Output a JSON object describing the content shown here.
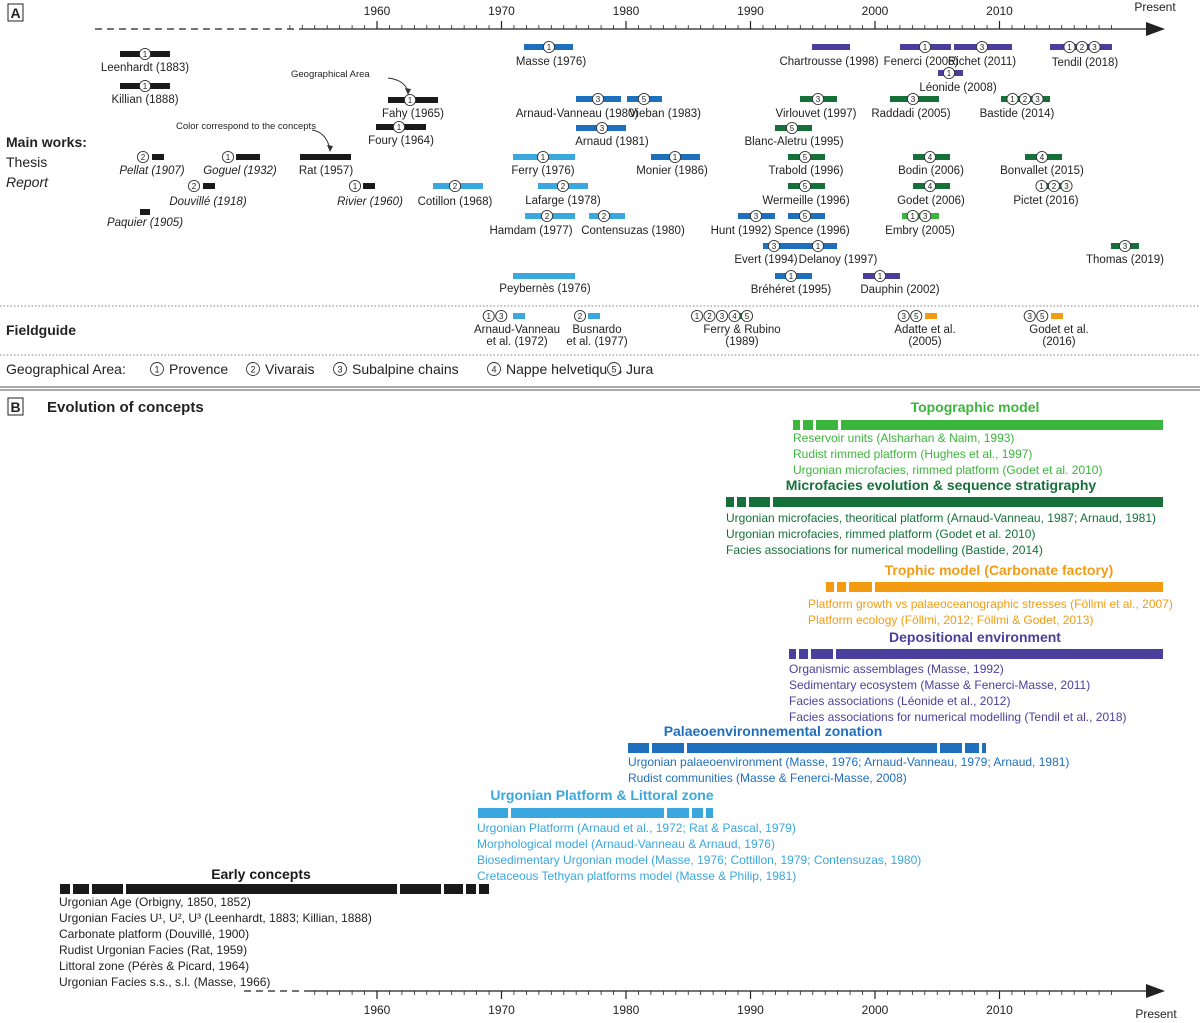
{
  "colors": {
    "black": "#1a1a1a",
    "light_blue": "#3aa7df",
    "mid_blue": "#1f6fbf",
    "purple": "#4b3f9e",
    "dark_green": "#16703a",
    "light_green": "#3cb53c",
    "orange": "#f39c12"
  },
  "panel_a": {
    "label": "A",
    "axis": {
      "ticks": [
        "1960",
        "1970",
        "1980",
        "1990",
        "2000",
        "2010"
      ],
      "tick_years": [
        1960,
        1970,
        1980,
        1990,
        2000,
        2010
      ],
      "end_label": "Present"
    },
    "main_works_label": "Main works:",
    "thesis_label": "Thesis",
    "report_label": "Report",
    "fieldguide_label": "Fieldguide",
    "annotation_area": "Geographical Area",
    "annotation_color": "Color correspond to the concepts",
    "works": [
      {
        "name": "Leenhardt (1883)",
        "italic": false,
        "areas": [
          1
        ]
      },
      {
        "name": "Killian (1888)",
        "italic": false,
        "areas": [
          1
        ]
      },
      {
        "name": "Fahy (1965)",
        "italic": false,
        "areas": [
          1
        ]
      },
      {
        "name": "Foury (1964)",
        "italic": false,
        "areas": [
          1
        ]
      },
      {
        "name": "Rat (1957)",
        "italic": false,
        "areas": []
      },
      {
        "name": "Pellat (1907)",
        "italic": true,
        "areas": [
          2
        ]
      },
      {
        "name": "Goguel (1932)",
        "italic": true,
        "areas": [
          1
        ]
      },
      {
        "name": "Douvillé (1918)",
        "italic": true,
        "areas": [
          2
        ]
      },
      {
        "name": "Paquier (1905)",
        "italic": true,
        "areas": []
      },
      {
        "name": "Rivier (1960)",
        "italic": true,
        "areas": [
          1
        ]
      },
      {
        "name": "Cotillon (1968)",
        "italic": false,
        "areas": [
          2
        ]
      },
      {
        "name": "Masse (1976)",
        "italic": false,
        "areas": [
          1
        ]
      },
      {
        "name": "Arnaud-Vanneau (1980)",
        "italic": false,
        "areas": [
          3
        ]
      },
      {
        "name": "Vieban (1983)",
        "italic": false,
        "areas": [
          5
        ]
      },
      {
        "name": "Arnaud (1981)",
        "italic": false,
        "areas": [
          3
        ]
      },
      {
        "name": "Ferry (1976)",
        "italic": false,
        "areas": [
          1
        ]
      },
      {
        "name": "Monier (1986)",
        "italic": false,
        "areas": [
          1
        ]
      },
      {
        "name": "Lafarge (1978)",
        "italic": false,
        "areas": [
          2
        ]
      },
      {
        "name": "Hamdam (1977)",
        "italic": false,
        "areas": [
          2
        ]
      },
      {
        "name": "Contensuzas (1980)",
        "italic": false,
        "areas": [
          2
        ]
      },
      {
        "name": "Peybernès (1976)",
        "italic": false,
        "areas": []
      },
      {
        "name": "Chartrousse (1998)",
        "italic": false,
        "areas": []
      },
      {
        "name": "Virlouvet (1997)",
        "italic": false,
        "areas": [
          3
        ]
      },
      {
        "name": "Blanc-Aletru (1995)",
        "italic": false,
        "areas": [
          5
        ]
      },
      {
        "name": "Trabold (1996)",
        "italic": false,
        "areas": [
          5
        ]
      },
      {
        "name": "Wermeille (1996)",
        "italic": false,
        "areas": [
          5
        ]
      },
      {
        "name": "Hunt (1992)",
        "italic": false,
        "areas": [
          3
        ]
      },
      {
        "name": "Spence (1996)",
        "italic": false,
        "areas": [
          5
        ]
      },
      {
        "name": "Evert (1994)",
        "italic": false,
        "areas": [
          3
        ]
      },
      {
        "name": "Delanoy (1997)",
        "italic": false,
        "areas": [
          1
        ]
      },
      {
        "name": "Bréhéret (1995)",
        "italic": false,
        "areas": [
          1
        ]
      },
      {
        "name": "Fenerci (2006)",
        "italic": false,
        "areas": [
          1
        ]
      },
      {
        "name": "Richet (2011)",
        "italic": false,
        "areas": [
          3
        ]
      },
      {
        "name": "Léonide (2008)",
        "italic": false,
        "areas": [
          1
        ]
      },
      {
        "name": "Raddadi (2005)",
        "italic": false,
        "areas": [
          3
        ]
      },
      {
        "name": "Bodin (2006)",
        "italic": false,
        "areas": [
          4
        ]
      },
      {
        "name": "Godet (2006)",
        "italic": false,
        "areas": [
          4
        ]
      },
      {
        "name": "Embry (2005)",
        "italic": false,
        "areas": [
          1,
          3
        ]
      },
      {
        "name": "Dauphin (2002)",
        "italic": false,
        "areas": [
          1
        ]
      },
      {
        "name": "Tendil (2018)",
        "italic": false,
        "areas": [
          1,
          2,
          3
        ]
      },
      {
        "name": "Bastide (2014)",
        "italic": false,
        "areas": [
          1,
          2,
          3
        ]
      },
      {
        "name": "Bonvallet (2015)",
        "italic": false,
        "areas": [
          4
        ]
      },
      {
        "name": "Pictet (2016)",
        "italic": false,
        "areas": [
          1,
          2,
          3
        ]
      },
      {
        "name": "Thomas (2019)",
        "italic": false,
        "areas": [
          3
        ]
      }
    ],
    "fieldguides": [
      {
        "name": "Arnaud-Vanneau\net al. (1972)",
        "areas": [
          1,
          3
        ]
      },
      {
        "name": "Busnardo\net al. (1977)",
        "areas": [
          2
        ]
      },
      {
        "name": "Ferry & Rubino\n(1989)",
        "areas": [
          1,
          2,
          3,
          4,
          5
        ]
      },
      {
        "name": "Adatte et al.\n(2005)",
        "areas": [
          3,
          5
        ]
      },
      {
        "name": "Godet et al.\n(2016)",
        "areas": [
          3,
          5
        ]
      }
    ],
    "legend": {
      "title": "Geographical Area:",
      "items": [
        {
          "num": "1",
          "label": "Provence"
        },
        {
          "num": "2",
          "label": "Vivarais"
        },
        {
          "num": "3",
          "label": "Subalpine chains"
        },
        {
          "num": "4",
          "label": "Nappe helvetiques"
        },
        {
          "num": "5",
          "label": "Jura"
        }
      ]
    }
  },
  "panel_b": {
    "label": "B",
    "title": "Evolution of concepts",
    "axis": {
      "ticks": [
        "1960",
        "1970",
        "1980",
        "1990",
        "2000",
        "2010"
      ],
      "tick_years": [
        1960,
        1970,
        1980,
        1990,
        2000,
        2010
      ],
      "end_label": "Present"
    },
    "concepts": [
      {
        "title": "Topographic model",
        "color_key": "light_green",
        "lines": [
          "Reservoir units (Alsharhan & Naim, 1993)",
          "Rudist rimmed platform (Hughes et al., 1997)",
          "Urgonian microfacies, rimmed platform (Godet et al. 2010)"
        ]
      },
      {
        "title": "Microfacies evolution & sequence stratigraphy",
        "color_key": "dark_green",
        "lines": [
          "Urgonian microfacies, theoritical platform (Arnaud-Vanneau, 1987; Arnaud, 1981)",
          "Urgonian microfacies, rimmed platform (Godet et al. 2010)",
          "Facies associations for numerical modelling (Bastide, 2014)"
        ]
      },
      {
        "title": "Trophic model (Carbonate factory)",
        "color_key": "orange",
        "lines": [
          "Platform growth vs palaeoceanographic stresses (Föllmi et al., 2007)",
          "Platform ecology (Föllmi, 2012; Föllmi & Godet, 2013)"
        ]
      },
      {
        "title": "Depositional environment",
        "color_key": "purple",
        "lines": [
          "Organismic assemblages (Masse, 1992)",
          "Sedimentary ecosystem (Masse & Fenerci-Masse, 2011)",
          "Facies associations (Léonide et al., 2012)",
          "Facies associations for numerical modelling (Tendil et al., 2018)"
        ]
      },
      {
        "title": "Palaeoenvironnemental zonation",
        "color_key": "mid_blue",
        "lines": [
          "Urgonian palaeoenvironment (Masse, 1976; Arnaud-Vanneau, 1979; Arnaud, 1981)",
          "Rudist communities (Masse & Fenerci-Masse, 2008)"
        ]
      },
      {
        "title": "Urgonian Platform & Littoral zone",
        "color_key": "light_blue",
        "lines": [
          "Urgonian Platform (Arnaud et al., 1972; Rat & Pascal, 1979)",
          "Morphological model (Arnaud-Vanneau & Arnaud, 1976)",
          "Biosedimentary Urgonian model (Masse, 1976; Cottillon, 1979; Contensuzas, 1980)",
          "Cretaceous Tethyan platforms model (Masse & Philip, 1981)"
        ]
      },
      {
        "title": "Early concepts",
        "color_key": "black",
        "lines": [
          "Urgonian Age (Orbigny, 1850, 1852)",
          "Urgonian Facies U¹, U², U³ (Leenhardt, 1883; Killian, 1888)",
          "Carbonate platform (Douvillé, 1900)",
          "Rudist Urgonian Facies (Rat, 1959)",
          "Littoral zone (Pérès & Picard, 1964)",
          "Urgonian Facies s.s., s.l. (Masse, 1966)"
        ]
      }
    ]
  }
}
